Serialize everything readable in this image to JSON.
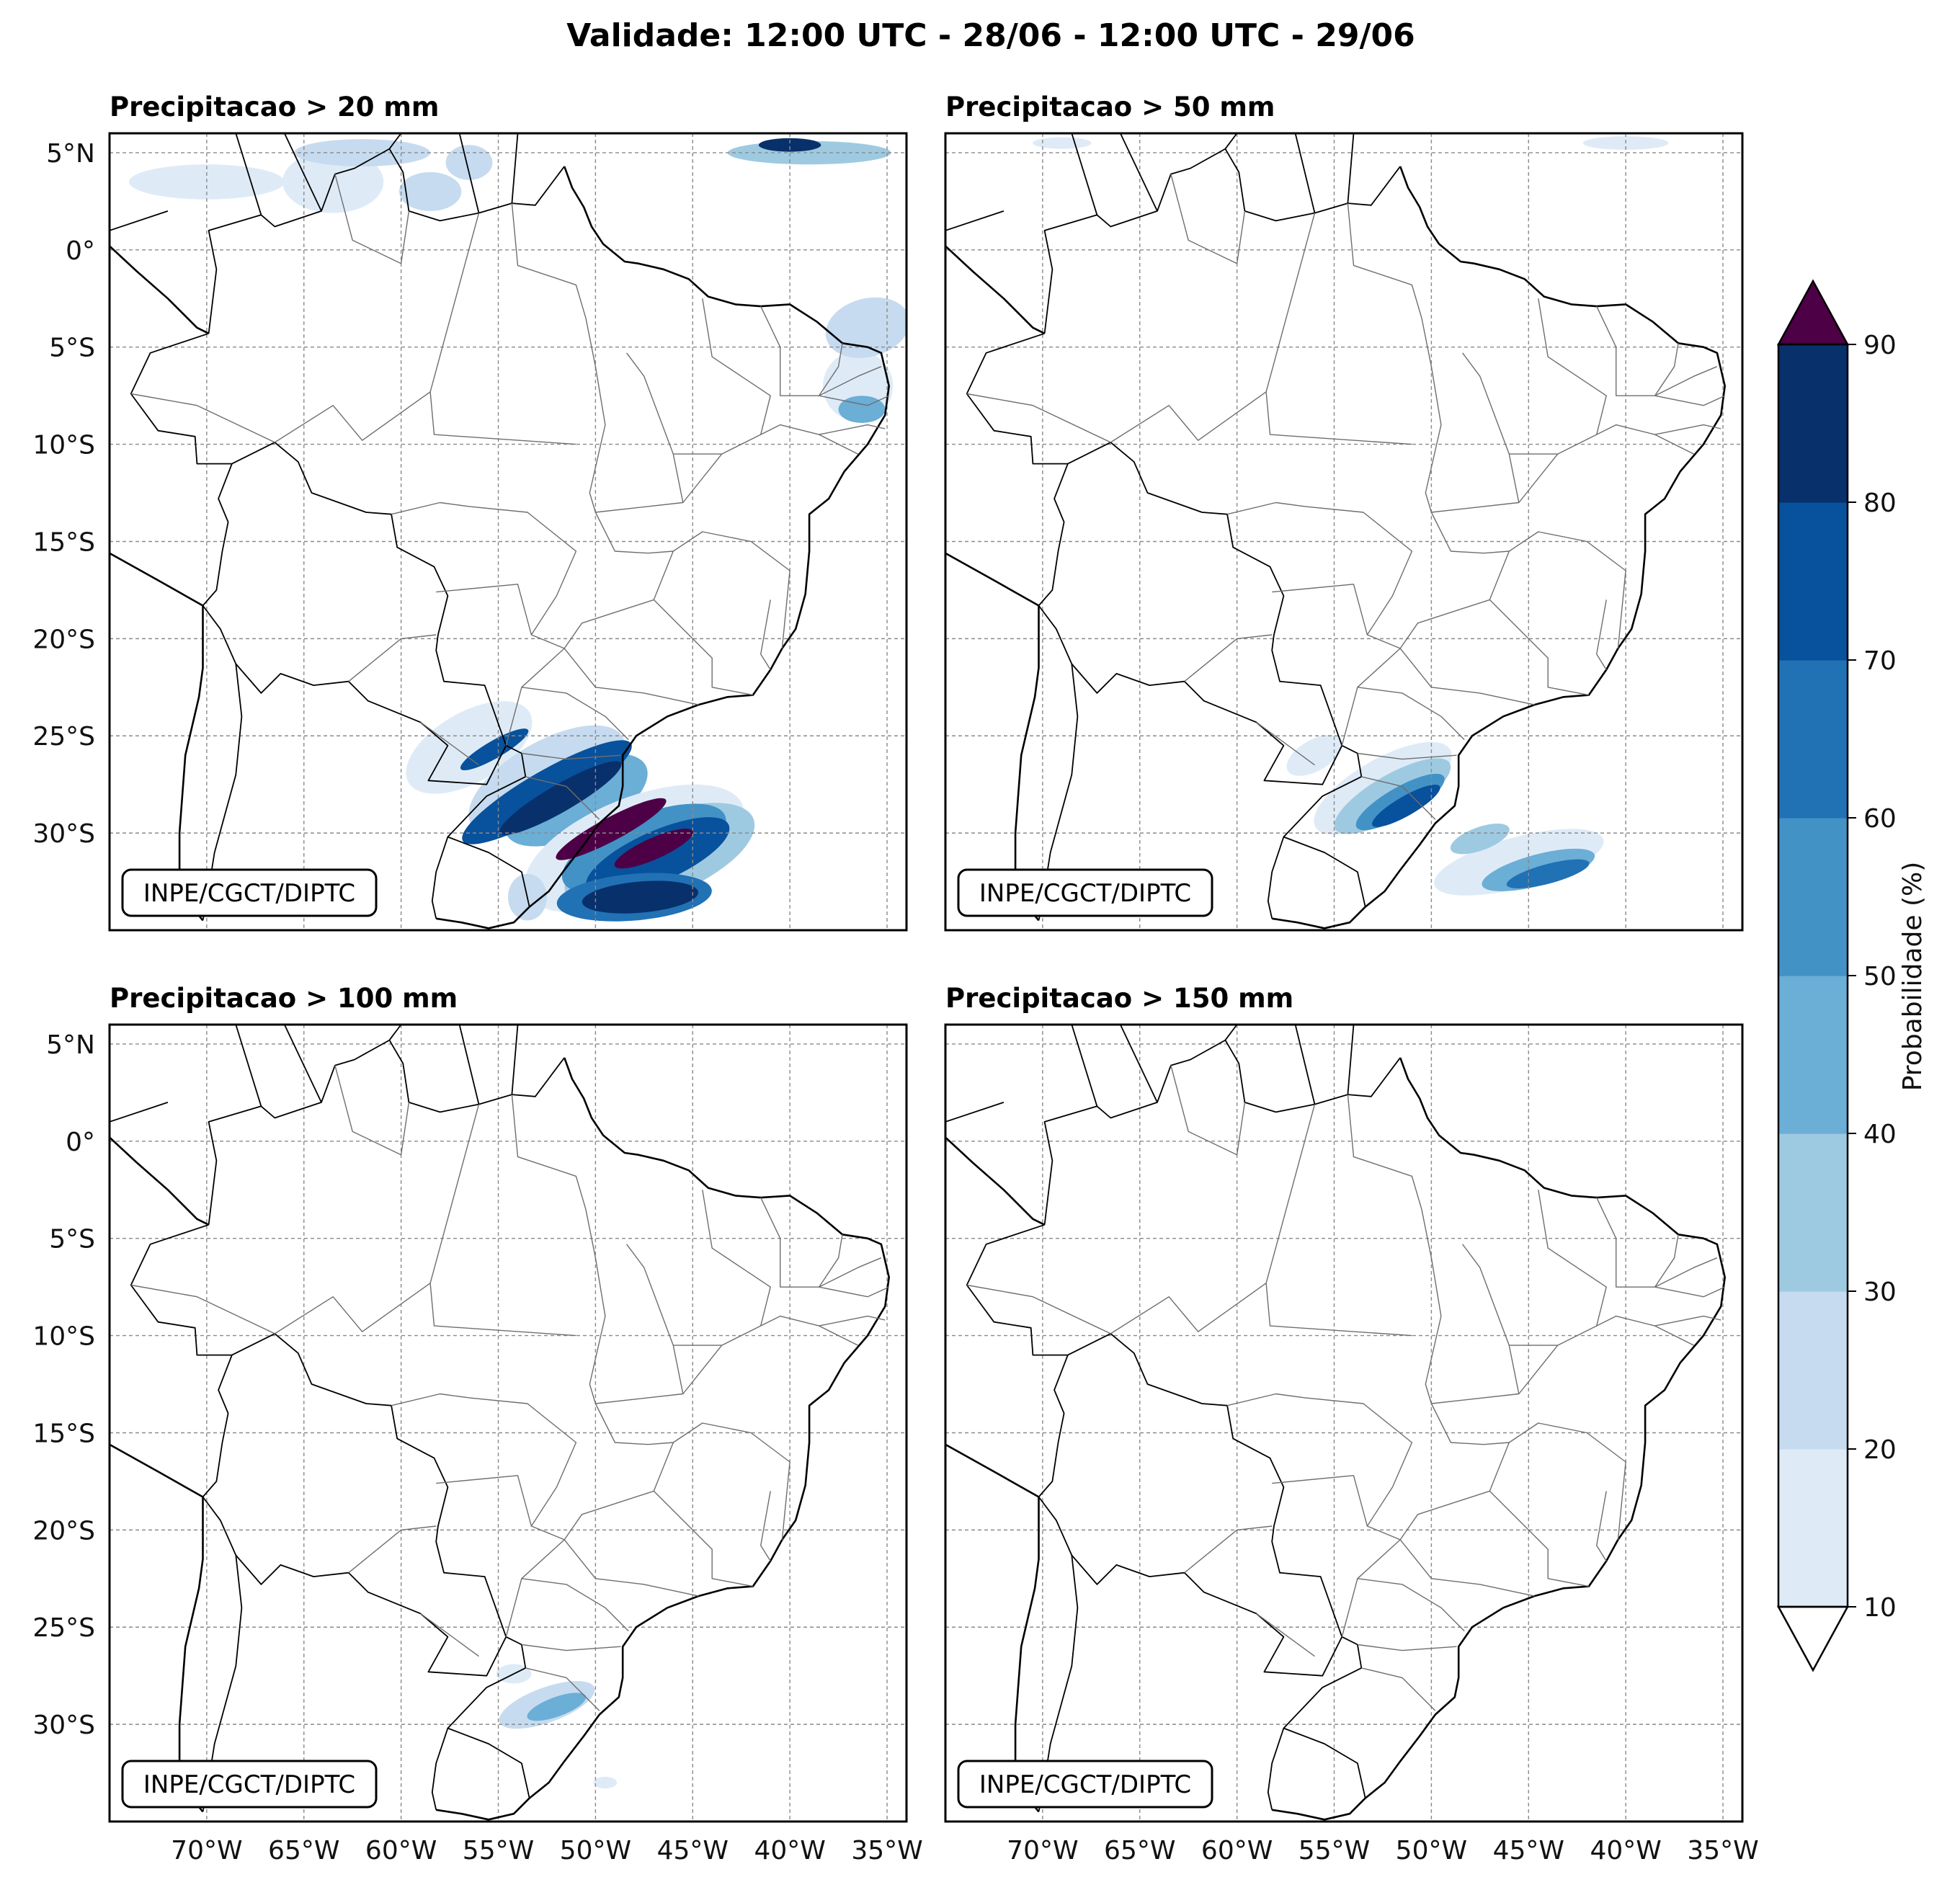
{
  "title": "Validade: 12:00 UTC - 28/06 - 12:00 UTC - 29/06",
  "panels": [
    {
      "title": "Precipitacao > 20 mm",
      "badge": "INPE/CGCT/DIPTC",
      "threshold_mm": 20
    },
    {
      "title": "Precipitacao > 50 mm",
      "badge": "INPE/CGCT/DIPTC",
      "threshold_mm": 50
    },
    {
      "title": "Precipitacao > 100 mm",
      "badge": "INPE/CGCT/DIPTC",
      "threshold_mm": 100
    },
    {
      "title": "Precipitacao > 150 mm",
      "badge": "INPE/CGCT/DIPTC",
      "threshold_mm": 150
    }
  ],
  "map": {
    "lon_range": [
      -75,
      -34
    ],
    "lat_range": [
      -35,
      6
    ],
    "lat_ticks": [
      {
        "value": 5,
        "label": "5°N"
      },
      {
        "value": 0,
        "label": "0°"
      },
      {
        "value": -5,
        "label": "5°S"
      },
      {
        "value": -10,
        "label": "10°S"
      },
      {
        "value": -15,
        "label": "15°S"
      },
      {
        "value": -20,
        "label": "20°S"
      },
      {
        "value": -25,
        "label": "25°S"
      },
      {
        "value": -30,
        "label": "30°S"
      }
    ],
    "lon_ticks": [
      {
        "value": -70,
        "label": "70°W"
      },
      {
        "value": -65,
        "label": "65°W"
      },
      {
        "value": -60,
        "label": "60°W"
      },
      {
        "value": -55,
        "label": "55°W"
      },
      {
        "value": -50,
        "label": "50°W"
      },
      {
        "value": -45,
        "label": "45°W"
      },
      {
        "value": -40,
        "label": "40°W"
      },
      {
        "value": -35,
        "label": "35°W"
      }
    ],
    "gridlines": true
  },
  "colorbar": {
    "label": "Probabilidade (%)",
    "levels": [
      10,
      20,
      30,
      40,
      50,
      60,
      70,
      80,
      90
    ],
    "tick_labels": [
      "10",
      "20",
      "30",
      "40",
      "50",
      "60",
      "70",
      "80",
      "90"
    ],
    "colors": [
      "#deebf7",
      "#c6dbef",
      "#9ecae1",
      "#6baed6",
      "#4292c6",
      "#2171b5",
      "#08519c",
      "#08306b"
    ],
    "over_color": "#4d0045",
    "under_color": "#ffffff",
    "extend": "both"
  }
}
